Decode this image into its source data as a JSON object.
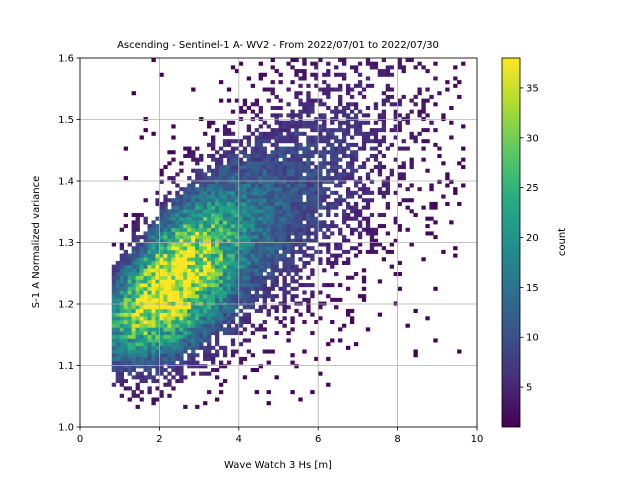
{
  "chart_data": {
    "type": "heatmap",
    "title": "Ascending - Sentinel-1 A- WV2 - From 2022/07/01 to 2022/07/30",
    "xlabel": "Wave Watch 3 Hs [m]",
    "ylabel": "S-1 A Normalized variance",
    "xlim": [
      0,
      10
    ],
    "ylim": [
      1.0,
      1.6
    ],
    "xticks": [
      "0",
      "2",
      "4",
      "6",
      "8",
      "10"
    ],
    "yticks": [
      "1.0",
      "1.1",
      "1.2",
      "1.3",
      "1.4",
      "1.5",
      "1.6"
    ],
    "grid": true,
    "colormap": "viridis",
    "colorbar": {
      "label": "count",
      "range": [
        1,
        38
      ],
      "ticks": [
        "5",
        "10",
        "15",
        "20",
        "25",
        "30",
        "35"
      ]
    },
    "distribution": {
      "bins_x": 100,
      "bins_y": 100,
      "peak_x": 2.2,
      "peak_y": 1.2,
      "peak_count": 38,
      "x_extent": [
        0.8,
        9.7
      ],
      "y_extent": [
        1.03,
        1.6
      ]
    }
  }
}
